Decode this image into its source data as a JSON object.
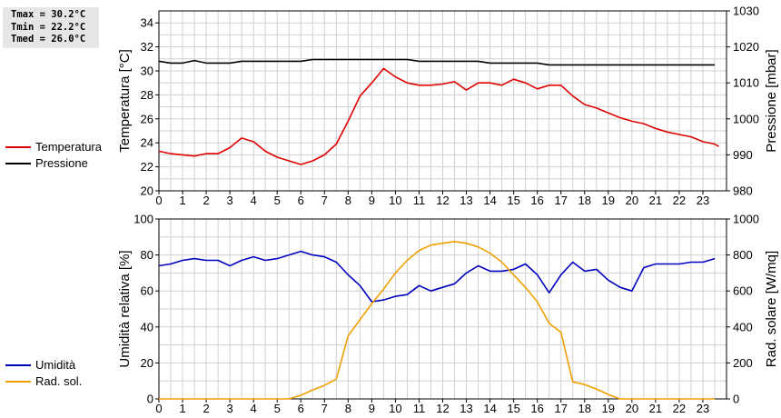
{
  "stats": {
    "tmax": "Tmax = 30.2°C",
    "tmin": "Tmin = 22.2°C",
    "tmed": "Tmed = 26.0°C"
  },
  "colors": {
    "temperature": "#e00000",
    "pressure": "#000000",
    "humidity": "#0000c0",
    "solar": "#f0a000",
    "grid": "#d0d0d0"
  },
  "chart_data": [
    {
      "type": "line",
      "xlim": [
        0,
        24
      ],
      "xticks": [
        "0",
        "1",
        "2",
        "3",
        "4",
        "5",
        "6",
        "7",
        "8",
        "9",
        "10",
        "11",
        "12",
        "13",
        "14",
        "15",
        "16",
        "17",
        "18",
        "19",
        "20",
        "21",
        "22",
        "23"
      ],
      "ylabel": "Temperatura [°C]",
      "ylim": [
        20,
        35
      ],
      "yticks": [
        "20",
        "22",
        "24",
        "26",
        "28",
        "30",
        "32",
        "34"
      ],
      "y2label": "Pressione [mbar]",
      "y2lim": [
        980,
        1030
      ],
      "y2ticks": [
        "980",
        "990",
        "1000",
        "1010",
        "1020",
        "1030"
      ],
      "grid": true,
      "legend_position": "left",
      "series": [
        {
          "name": "Temperatura",
          "axis": "left",
          "x": [
            0,
            0.5,
            1,
            1.5,
            2,
            2.5,
            3,
            3.5,
            3.83,
            4,
            4.5,
            5,
            5.5,
            6,
            6.5,
            7,
            7.5,
            8,
            8.5,
            9,
            9.5,
            10,
            10.5,
            11,
            11.5,
            12,
            12.5,
            13,
            13.5,
            14,
            14.5,
            15,
            15.5,
            16,
            16.5,
            17,
            17.5,
            18,
            18.5,
            19,
            19.5,
            20,
            20.5,
            21,
            21.5,
            22,
            22.5,
            23,
            23.5,
            23.67
          ],
          "values": [
            23.3,
            23.1,
            23.0,
            22.9,
            23.1,
            23.1,
            23.6,
            24.4,
            24.2,
            24.1,
            23.3,
            22.8,
            22.5,
            22.2,
            22.5,
            23.0,
            23.9,
            25.8,
            27.9,
            29.0,
            30.2,
            29.5,
            29.0,
            28.8,
            28.8,
            28.9,
            29.1,
            28.4,
            29.0,
            29.0,
            28.8,
            29.3,
            29.0,
            28.5,
            28.8,
            28.8,
            27.9,
            27.2,
            26.9,
            26.5,
            26.1,
            25.8,
            25.6,
            25.2,
            24.9,
            24.7,
            24.5,
            24.1,
            23.9,
            23.7
          ]
        },
        {
          "name": "Pressione",
          "axis": "right",
          "x": [
            0,
            0.5,
            1,
            1.5,
            2,
            2.5,
            3,
            3.5,
            4,
            4.5,
            5,
            5.5,
            6,
            6.5,
            7,
            7.5,
            8,
            8.5,
            9,
            9.5,
            10,
            10.5,
            11,
            11.5,
            12,
            12.5,
            13,
            13.5,
            14,
            14.5,
            15,
            15.5,
            16,
            16.5,
            17,
            17.5,
            18,
            18.5,
            19,
            19.5,
            20,
            20.5,
            21,
            21.5,
            22,
            22.5,
            23,
            23.5
          ],
          "values": [
            1016.0,
            1015.5,
            1015.5,
            1016.2,
            1015.5,
            1015.5,
            1015.5,
            1016.0,
            1016.0,
            1016.0,
            1016.0,
            1016.0,
            1016.0,
            1016.5,
            1016.5,
            1016.5,
            1016.5,
            1016.5,
            1016.5,
            1016.5,
            1016.5,
            1016.5,
            1016.0,
            1016.0,
            1016.0,
            1016.0,
            1016.0,
            1016.0,
            1015.5,
            1015.5,
            1015.5,
            1015.5,
            1015.5,
            1015.0,
            1015.0,
            1015.0,
            1015.0,
            1015.0,
            1015.0,
            1015.0,
            1015.0,
            1015.0,
            1015.0,
            1015.0,
            1015.0,
            1015.0,
            1015.0,
            1015.0
          ]
        }
      ]
    },
    {
      "type": "line",
      "xlim": [
        0,
        24
      ],
      "xticks": [
        "0",
        "1",
        "2",
        "3",
        "4",
        "5",
        "6",
        "7",
        "8",
        "9",
        "10",
        "11",
        "12",
        "13",
        "14",
        "15",
        "16",
        "17",
        "18",
        "19",
        "20",
        "21",
        "22",
        "23"
      ],
      "ylabel": "Umidità relativa [%]",
      "ylim": [
        0,
        100
      ],
      "yticks": [
        "0",
        "20",
        "40",
        "60",
        "80",
        "100"
      ],
      "y2label": "Rad. solare [W/mq]",
      "y2lim": [
        0,
        1000
      ],
      "y2ticks": [
        "0",
        "200",
        "400",
        "600",
        "800",
        "1000"
      ],
      "grid": true,
      "legend_position": "left",
      "series": [
        {
          "name": "Umidità",
          "axis": "left",
          "x": [
            0,
            0.5,
            1,
            1.5,
            2,
            2.5,
            3,
            3.5,
            4,
            4.5,
            5,
            5.5,
            6,
            6.5,
            7,
            7.5,
            8,
            8.5,
            9,
            9.5,
            10,
            10.5,
            11,
            11.5,
            12,
            12.5,
            13,
            13.5,
            14,
            14.5,
            15,
            15.5,
            16,
            16.5,
            17,
            17.5,
            18,
            18.5,
            19,
            19.5,
            20,
            20.5,
            21,
            21.5,
            22,
            22.5,
            23,
            23.5
          ],
          "values": [
            74,
            75,
            77,
            78,
            77,
            77,
            74,
            77,
            79,
            77,
            78,
            80,
            82,
            80,
            79,
            76,
            69,
            63,
            54,
            55,
            57,
            58,
            63,
            60,
            62,
            64,
            70,
            74,
            71,
            71,
            72,
            75,
            69,
            59,
            69,
            76,
            71,
            72,
            66,
            62,
            60,
            73,
            75,
            75,
            75,
            76,
            76,
            78
          ]
        },
        {
          "name": "Rad. sol.",
          "axis": "right",
          "x": [
            0,
            0.5,
            1,
            1.5,
            2,
            2.5,
            3,
            3.5,
            4,
            4.5,
            5,
            5.5,
            6,
            6.5,
            7,
            7.5,
            8,
            8.5,
            9,
            9.5,
            10,
            10.5,
            11,
            11.5,
            12,
            12.5,
            13,
            13.5,
            14,
            14.5,
            15,
            15.5,
            16,
            16.5,
            17,
            17.5,
            18,
            18.5,
            19,
            19.5,
            20,
            20.5,
            21,
            21.5,
            22,
            22.5,
            23,
            23.5
          ],
          "values": [
            0,
            0,
            0,
            0,
            0,
            0,
            0,
            0,
            0,
            0,
            0,
            0,
            20,
            50,
            75,
            110,
            350,
            440,
            530,
            610,
            700,
            770,
            825,
            855,
            865,
            875,
            865,
            845,
            810,
            760,
            690,
            620,
            540,
            420,
            370,
            95,
            80,
            55,
            25,
            0,
            0,
            0,
            0,
            0,
            0,
            0,
            0,
            0
          ]
        }
      ]
    }
  ]
}
